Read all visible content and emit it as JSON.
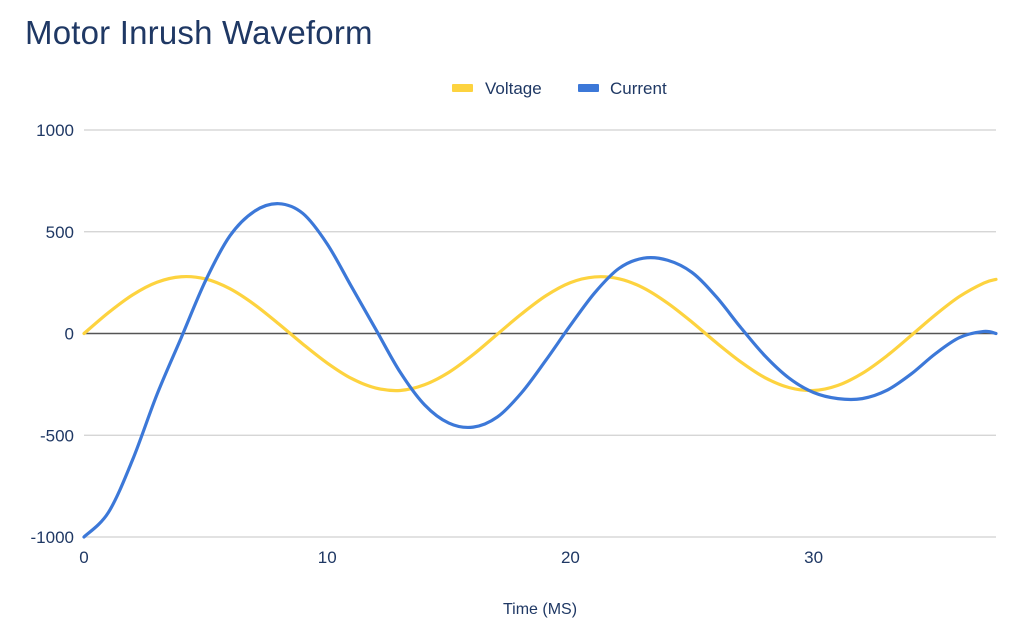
{
  "chart_data": {
    "type": "line",
    "title": "Motor Inrush Waveform",
    "xlabel": "Time (MS)",
    "ylabel": "",
    "xlim": [
      0,
      37.5
    ],
    "ylim": [
      -1000,
      1000
    ],
    "xticks": [
      0,
      10,
      20,
      30
    ],
    "yticks": [
      -1000,
      -500,
      0,
      500,
      1000
    ],
    "grid": true,
    "legend_position": "top",
    "series": [
      {
        "name": "Voltage",
        "color": "#fdd33f",
        "x": [
          0,
          1,
          2,
          3,
          4,
          5,
          6,
          7,
          8,
          9,
          10,
          11,
          12,
          13,
          14,
          15,
          16,
          17,
          18,
          19,
          20,
          21,
          22,
          23,
          24,
          25,
          26,
          27,
          28,
          29,
          30,
          31,
          32,
          33,
          34,
          35,
          36,
          37,
          37.5
        ],
        "values": [
          0,
          102,
          190,
          252,
          279,
          268,
          220,
          143,
          48,
          -52,
          -145,
          -221,
          -268,
          -280,
          -252,
          -191,
          -104,
          -3,
          97,
          186,
          250,
          278,
          269,
          224,
          149,
          56,
          -45,
          -139,
          -217,
          -266,
          -280,
          -255,
          -196,
          -111,
          -11,
          91,
          182,
          248,
          266
        ]
      },
      {
        "name": "Current",
        "color": "#3c78d8",
        "x": [
          0,
          1,
          2,
          3,
          4,
          5,
          6,
          7,
          8,
          9,
          10,
          11,
          12,
          13,
          14,
          15,
          16,
          17,
          18,
          19,
          20,
          21,
          22,
          23,
          24,
          25,
          26,
          27,
          28,
          29,
          30,
          31,
          32,
          33,
          34,
          35,
          36,
          37,
          37.5
        ],
        "values": [
          -1000,
          -880,
          -620,
          -300,
          -20,
          260,
          480,
          600,
          638,
          590,
          440,
          230,
          20,
          -190,
          -350,
          -440,
          -460,
          -410,
          -290,
          -130,
          40,
          200,
          320,
          370,
          360,
          300,
          180,
          30,
          -110,
          -220,
          -290,
          -320,
          -320,
          -280,
          -200,
          -100,
          -20,
          10,
          0
        ]
      }
    ]
  }
}
